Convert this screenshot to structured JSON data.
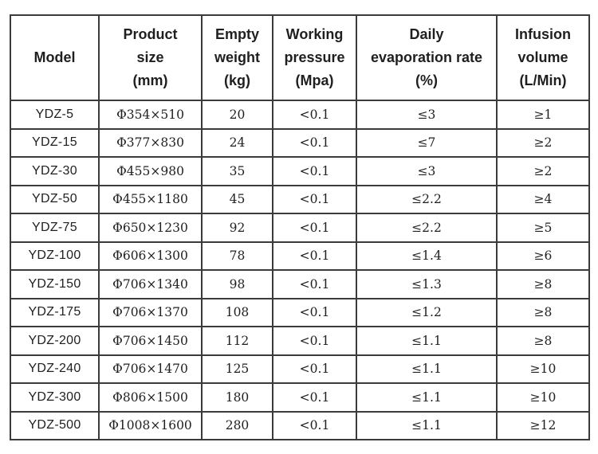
{
  "table": {
    "columns": [
      {
        "id": "model",
        "lines": [
          "Model"
        ]
      },
      {
        "id": "product-size",
        "lines": [
          "Product",
          "size",
          "(mm)"
        ]
      },
      {
        "id": "empty-weight",
        "lines": [
          "Empty",
          "weight",
          "(kg)"
        ]
      },
      {
        "id": "working-pressure",
        "lines": [
          "Working",
          "pressure",
          "(Mpa)"
        ]
      },
      {
        "id": "daily-evaporation-rate",
        "lines": [
          "Daily",
          "evaporation rate",
          "(%)"
        ]
      },
      {
        "id": "infusion-volume",
        "lines": [
          "Infusion",
          "volume",
          "(L/Min)"
        ]
      }
    ],
    "rows": [
      [
        "YDZ-5",
        "Φ354×510",
        "20",
        "<0.1",
        "≤3",
        "≥1"
      ],
      [
        "YDZ-15",
        "Φ377×830",
        "24",
        "<0.1",
        "≤7",
        "≥2"
      ],
      [
        "YDZ-30",
        "Φ455×980",
        "35",
        "<0.1",
        "≤3",
        "≥2"
      ],
      [
        "YDZ-50",
        "Φ455×1180",
        "45",
        "<0.1",
        "≤2.2",
        "≥4"
      ],
      [
        "YDZ-75",
        "Φ650×1230",
        "92",
        "<0.1",
        "≤2.2",
        "≥5"
      ],
      [
        "YDZ-100",
        "Φ606×1300",
        "78",
        "<0.1",
        "≤1.4",
        "≥6"
      ],
      [
        "YDZ-150",
        "Φ706×1340",
        "98",
        "<0.1",
        "≤1.3",
        "≥8"
      ],
      [
        "YDZ-175",
        "Φ706×1370",
        "108",
        "<0.1",
        "≤1.2",
        "≥8"
      ],
      [
        "YDZ-200",
        "Φ706×1450",
        "112",
        "<0.1",
        "≤1.1",
        "≥8"
      ],
      [
        "YDZ-240",
        "Φ706×1470",
        "125",
        "<0.1",
        "≤1.1",
        "≥10"
      ],
      [
        "YDZ-300",
        "Φ806×1500",
        "180",
        "<0.1",
        "≤1.1",
        "≥10"
      ],
      [
        "YDZ-500",
        "Φ1008×1600",
        "280",
        "<0.1",
        "≤1.1",
        "≥12"
      ]
    ]
  },
  "styles": {
    "border_color": "#3b3b3b",
    "text_color": "#1f1f1f",
    "background": "#ffffff"
  }
}
